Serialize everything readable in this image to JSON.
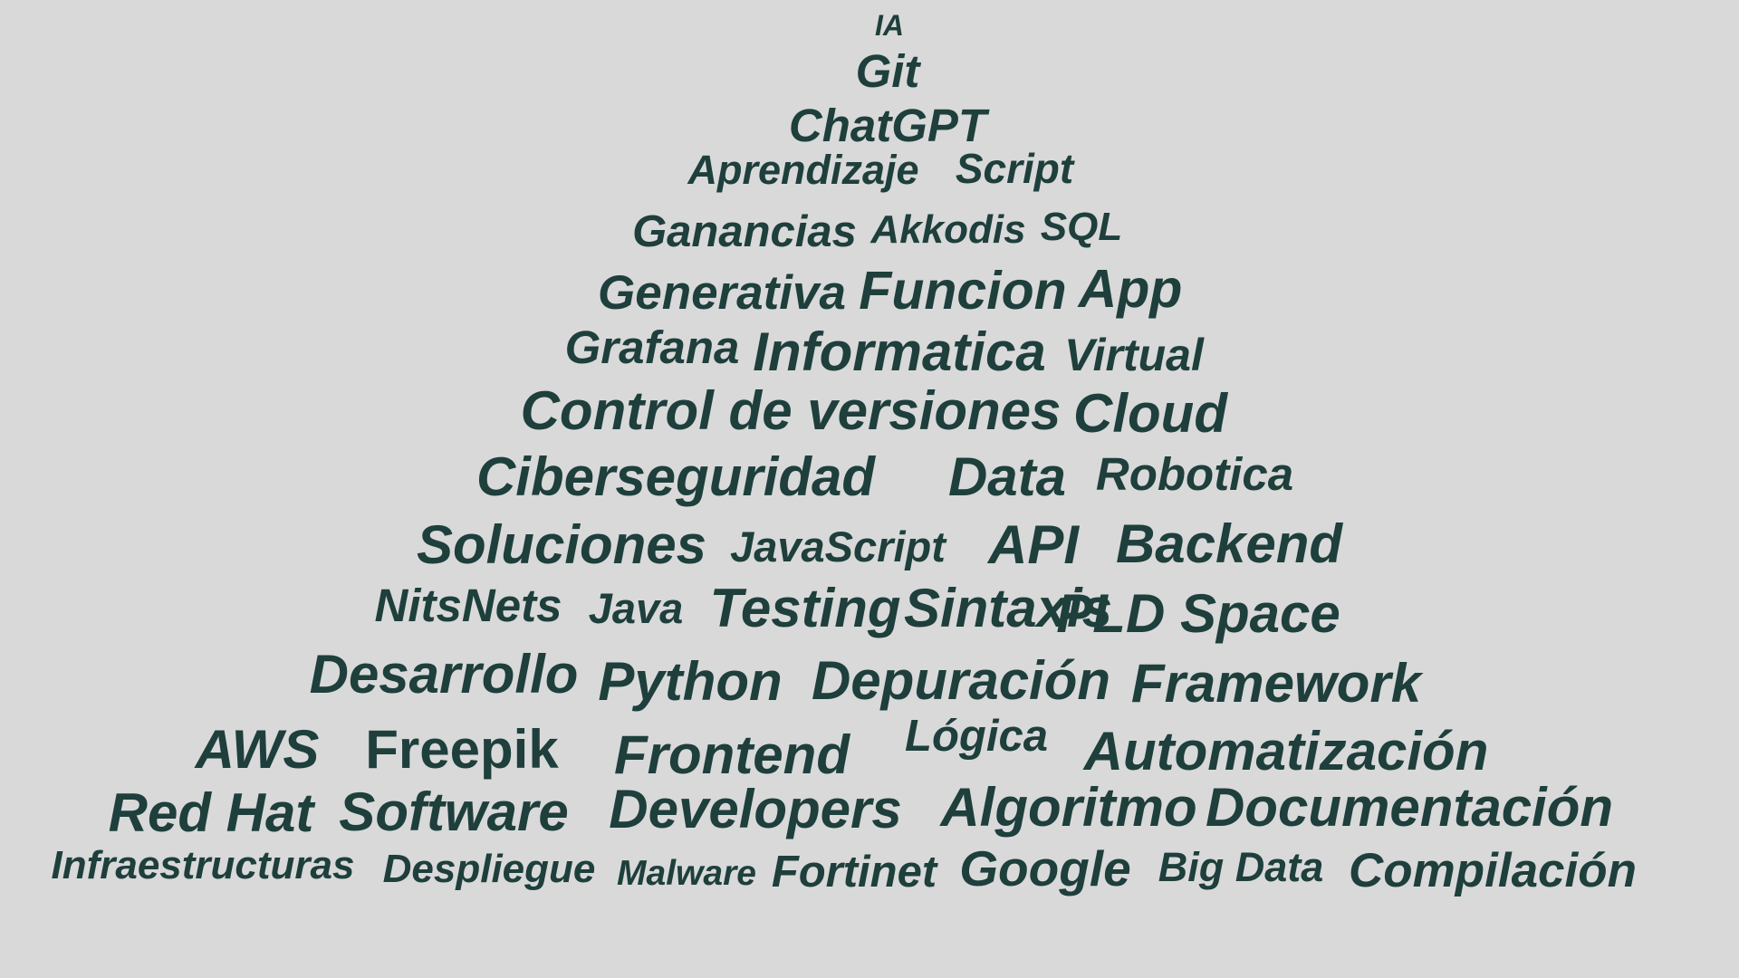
{
  "text_color": "#1e3f3c",
  "background_color": "#d9d9d9",
  "words": [
    "IA",
    "Git",
    "ChatGPT",
    "Aprendizaje",
    "Script",
    "Ganancias",
    "Akkodis",
    "SQL",
    "Generativa",
    "Funcion",
    "App",
    "Grafana",
    "Informatica",
    "Virtual",
    "Control de versiones",
    "Cloud",
    "Ciberseguridad",
    "Data",
    "Robotica",
    "Soluciones",
    "JavaScript",
    "API",
    "Backend",
    "NitsNets",
    "Java",
    "Testing",
    "Sintaxis",
    "PLD Space",
    "Desarrollo",
    "Python",
    "Depuración",
    "Framework",
    "AWS",
    "Freepik",
    "Frontend",
    "Lógica",
    "Automatización",
    "Red Hat",
    "Software",
    "Developers",
    "Algoritmo",
    "Documentación",
    "Infraestructuras",
    "Despliegue",
    "Malware",
    "Fortinet",
    "Google",
    "Big Data",
    "Compilación"
  ]
}
